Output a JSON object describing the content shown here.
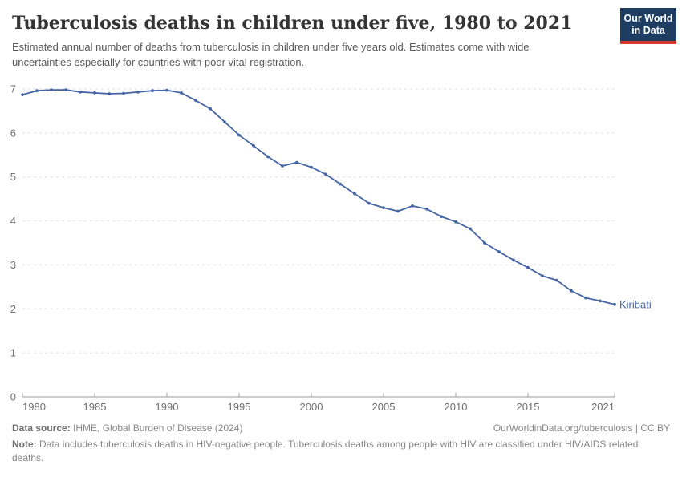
{
  "header": {
    "title": "Tuberculosis deaths in children under five, 1980 to 2021",
    "subtitle": "Estimated annual number of deaths from tuberculosis in children under five years old. Estimates come with wide uncertainties especially for countries with poor vital registration.",
    "logo": {
      "line1": "Our World",
      "line2": "in Data",
      "bg_color": "#1d3d63",
      "stripe_color": "#d93a2d"
    }
  },
  "chart_data": {
    "type": "line",
    "title": "Tuberculosis deaths in children under five, 1980 to 2021",
    "xlabel": "",
    "ylabel": "",
    "xlim": [
      1980,
      2021
    ],
    "ylim": [
      0,
      7
    ],
    "grid": "horizontal-dashed",
    "legend_position": "end-of-line-label",
    "x_ticks": [
      1980,
      1985,
      1990,
      1995,
      2000,
      2005,
      2010,
      2015,
      2021
    ],
    "y_ticks": [
      0,
      1,
      2,
      3,
      4,
      5,
      6,
      7
    ],
    "series": [
      {
        "name": "Kiribati",
        "color": "#4665a3",
        "x": [
          1980,
          1981,
          1982,
          1983,
          1984,
          1985,
          1986,
          1987,
          1988,
          1989,
          1990,
          1991,
          1992,
          1993,
          1994,
          1995,
          1996,
          1997,
          1998,
          1999,
          2000,
          2001,
          2002,
          2003,
          2004,
          2005,
          2006,
          2007,
          2008,
          2009,
          2010,
          2011,
          2012,
          2013,
          2014,
          2015,
          2016,
          2017,
          2018,
          2019,
          2020,
          2021
        ],
        "values": [
          6.87,
          6.96,
          6.98,
          6.98,
          6.93,
          6.91,
          6.89,
          6.9,
          6.93,
          6.96,
          6.97,
          6.91,
          6.74,
          6.55,
          6.25,
          5.95,
          5.71,
          5.46,
          5.25,
          5.33,
          5.22,
          5.06,
          4.84,
          4.62,
          4.4,
          4.3,
          4.22,
          4.34,
          4.27,
          4.1,
          3.98,
          3.82,
          3.5,
          3.3,
          3.11,
          2.94,
          2.75,
          2.65,
          2.41,
          2.25,
          2.18,
          2.1
        ]
      }
    ]
  },
  "footer": {
    "source_label": "Data source:",
    "source_text": " IHME, Global Burden of Disease (2024)",
    "right_text": "OurWorldinData.org/tuberculosis | CC BY",
    "note_label": "Note:",
    "note_text": " Data includes tuberculosis deaths in HIV-negative people. Tuberculosis deaths among people with HIV are classified under HIV/AIDS related deaths."
  }
}
